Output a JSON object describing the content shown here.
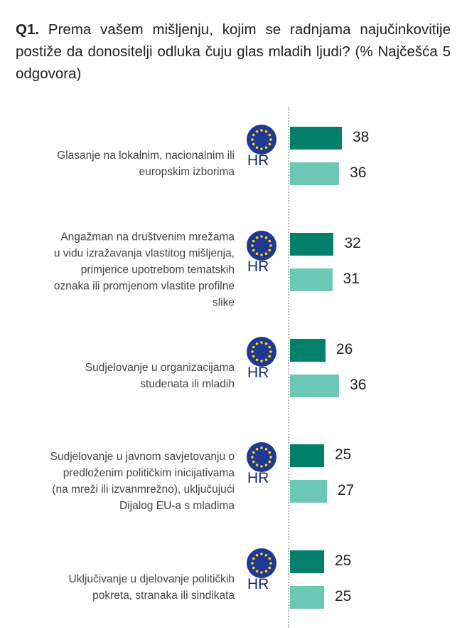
{
  "title": {
    "prefix": "Q1.",
    "text": " Prema vašem mišljenju, kojim se radnjama najučinkovitije postiže da donositelji odluka čuju glas mladih ljudi? (% Najčešća 5 odgovora)"
  },
  "colors": {
    "eu": "#00806a",
    "hr": "#6cc8b5"
  },
  "chart_data": {
    "type": "bar",
    "orientation": "horizontal",
    "title": "Q1. Prema vašem mišljenju, kojim se radnjama najučinkovitije postiže da donositelji odluka čuju glas mladih ljudi? (% Najčešća 5 odgovora)",
    "categories": [
      [
        "Glasanje na lokalnim, nacionalnim ili",
        "europskim izborima"
      ],
      [
        "Angažman na društvenim mrežama",
        "u vidu izražavanja vlastitog mišljenja,",
        "primjerice upotrebom tematskih",
        "oznaka ili promjenom vlastite profilne",
        "slike"
      ],
      [
        "Sudjelovanje u organizacijama",
        "studenata ili mladih"
      ],
      [
        "Sudjelovanje u javnom savjetovanju o",
        "predloženim političkim inicijativama",
        "(na mreži ili izvanmrežno), uključujući",
        "Dijalog EU-a s mladima"
      ],
      [
        "Uključivanje u djelovanje političkih",
        "pokreta, stranaka ili sindikata"
      ]
    ],
    "series": [
      {
        "name": "EU",
        "icon": "eu-flag-icon",
        "values": [
          38,
          32,
          26,
          25,
          25
        ]
      },
      {
        "name": "HR",
        "values": [
          36,
          31,
          36,
          27,
          25
        ]
      }
    ],
    "xlim": [
      0,
      100
    ],
    "grid": false
  }
}
